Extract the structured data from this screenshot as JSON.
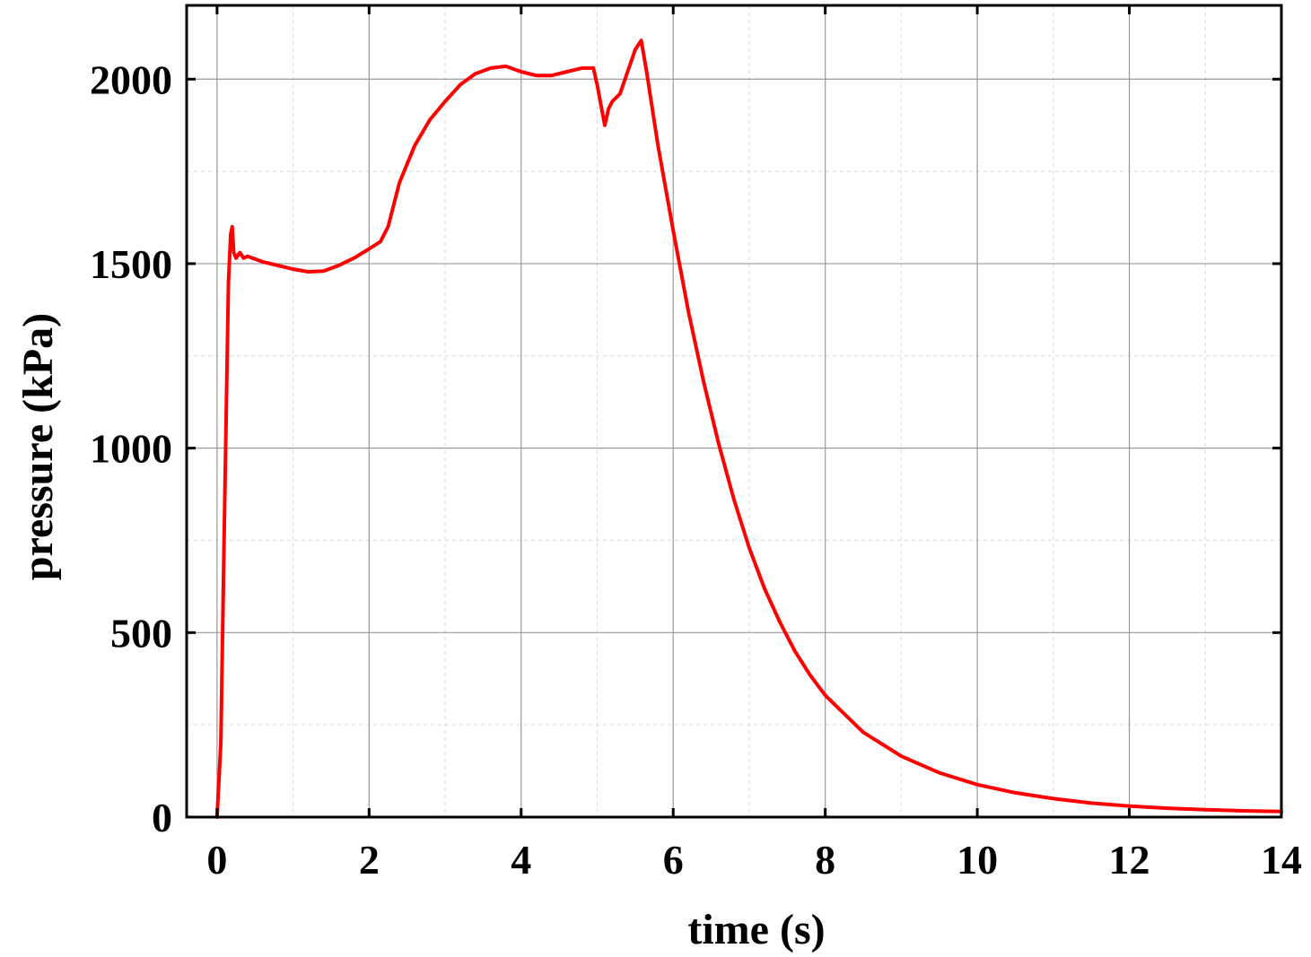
{
  "chart_data": {
    "type": "line",
    "xlabel": "time (s)",
    "ylabel": "pressure (kPa)",
    "xlim": [
      -0.4,
      14
    ],
    "ylim": [
      0,
      2200
    ],
    "xticks": [
      0,
      2,
      4,
      6,
      8,
      10,
      12,
      14
    ],
    "yticks": [
      0,
      500,
      1000,
      1500,
      2000
    ],
    "grid": true,
    "series": [
      {
        "color": "#ff0000",
        "x": [
          0.0,
          0.05,
          0.1,
          0.15,
          0.18,
          0.2,
          0.22,
          0.25,
          0.3,
          0.35,
          0.4,
          0.6,
          0.8,
          1.0,
          1.2,
          1.4,
          1.6,
          1.8,
          2.0,
          2.15,
          2.25,
          2.4,
          2.6,
          2.8,
          3.0,
          3.2,
          3.4,
          3.6,
          3.8,
          4.0,
          4.2,
          4.4,
          4.6,
          4.8,
          4.95,
          5.0,
          5.05,
          5.1,
          5.15,
          5.2,
          5.3,
          5.4,
          5.5,
          5.58,
          5.65,
          5.8,
          6.0,
          6.2,
          6.4,
          6.6,
          6.8,
          7.0,
          7.2,
          7.4,
          7.6,
          7.8,
          8.0,
          8.5,
          9.0,
          9.5,
          10.0,
          10.5,
          11.0,
          11.5,
          12.0,
          12.5,
          13.0,
          13.5,
          14.0
        ],
        "y": [
          0,
          200,
          850,
          1450,
          1580,
          1600,
          1530,
          1515,
          1530,
          1515,
          1520,
          1505,
          1495,
          1485,
          1478,
          1480,
          1495,
          1515,
          1540,
          1560,
          1600,
          1720,
          1820,
          1890,
          1940,
          1985,
          2015,
          2030,
          2035,
          2020,
          2010,
          2010,
          2020,
          2030,
          2030,
          1985,
          1930,
          1875,
          1920,
          1940,
          1960,
          2020,
          2080,
          2105,
          2020,
          1820,
          1590,
          1370,
          1180,
          1010,
          860,
          730,
          620,
          530,
          450,
          385,
          330,
          230,
          165,
          120,
          88,
          66,
          50,
          38,
          30,
          24,
          20,
          17,
          15
        ]
      }
    ]
  }
}
